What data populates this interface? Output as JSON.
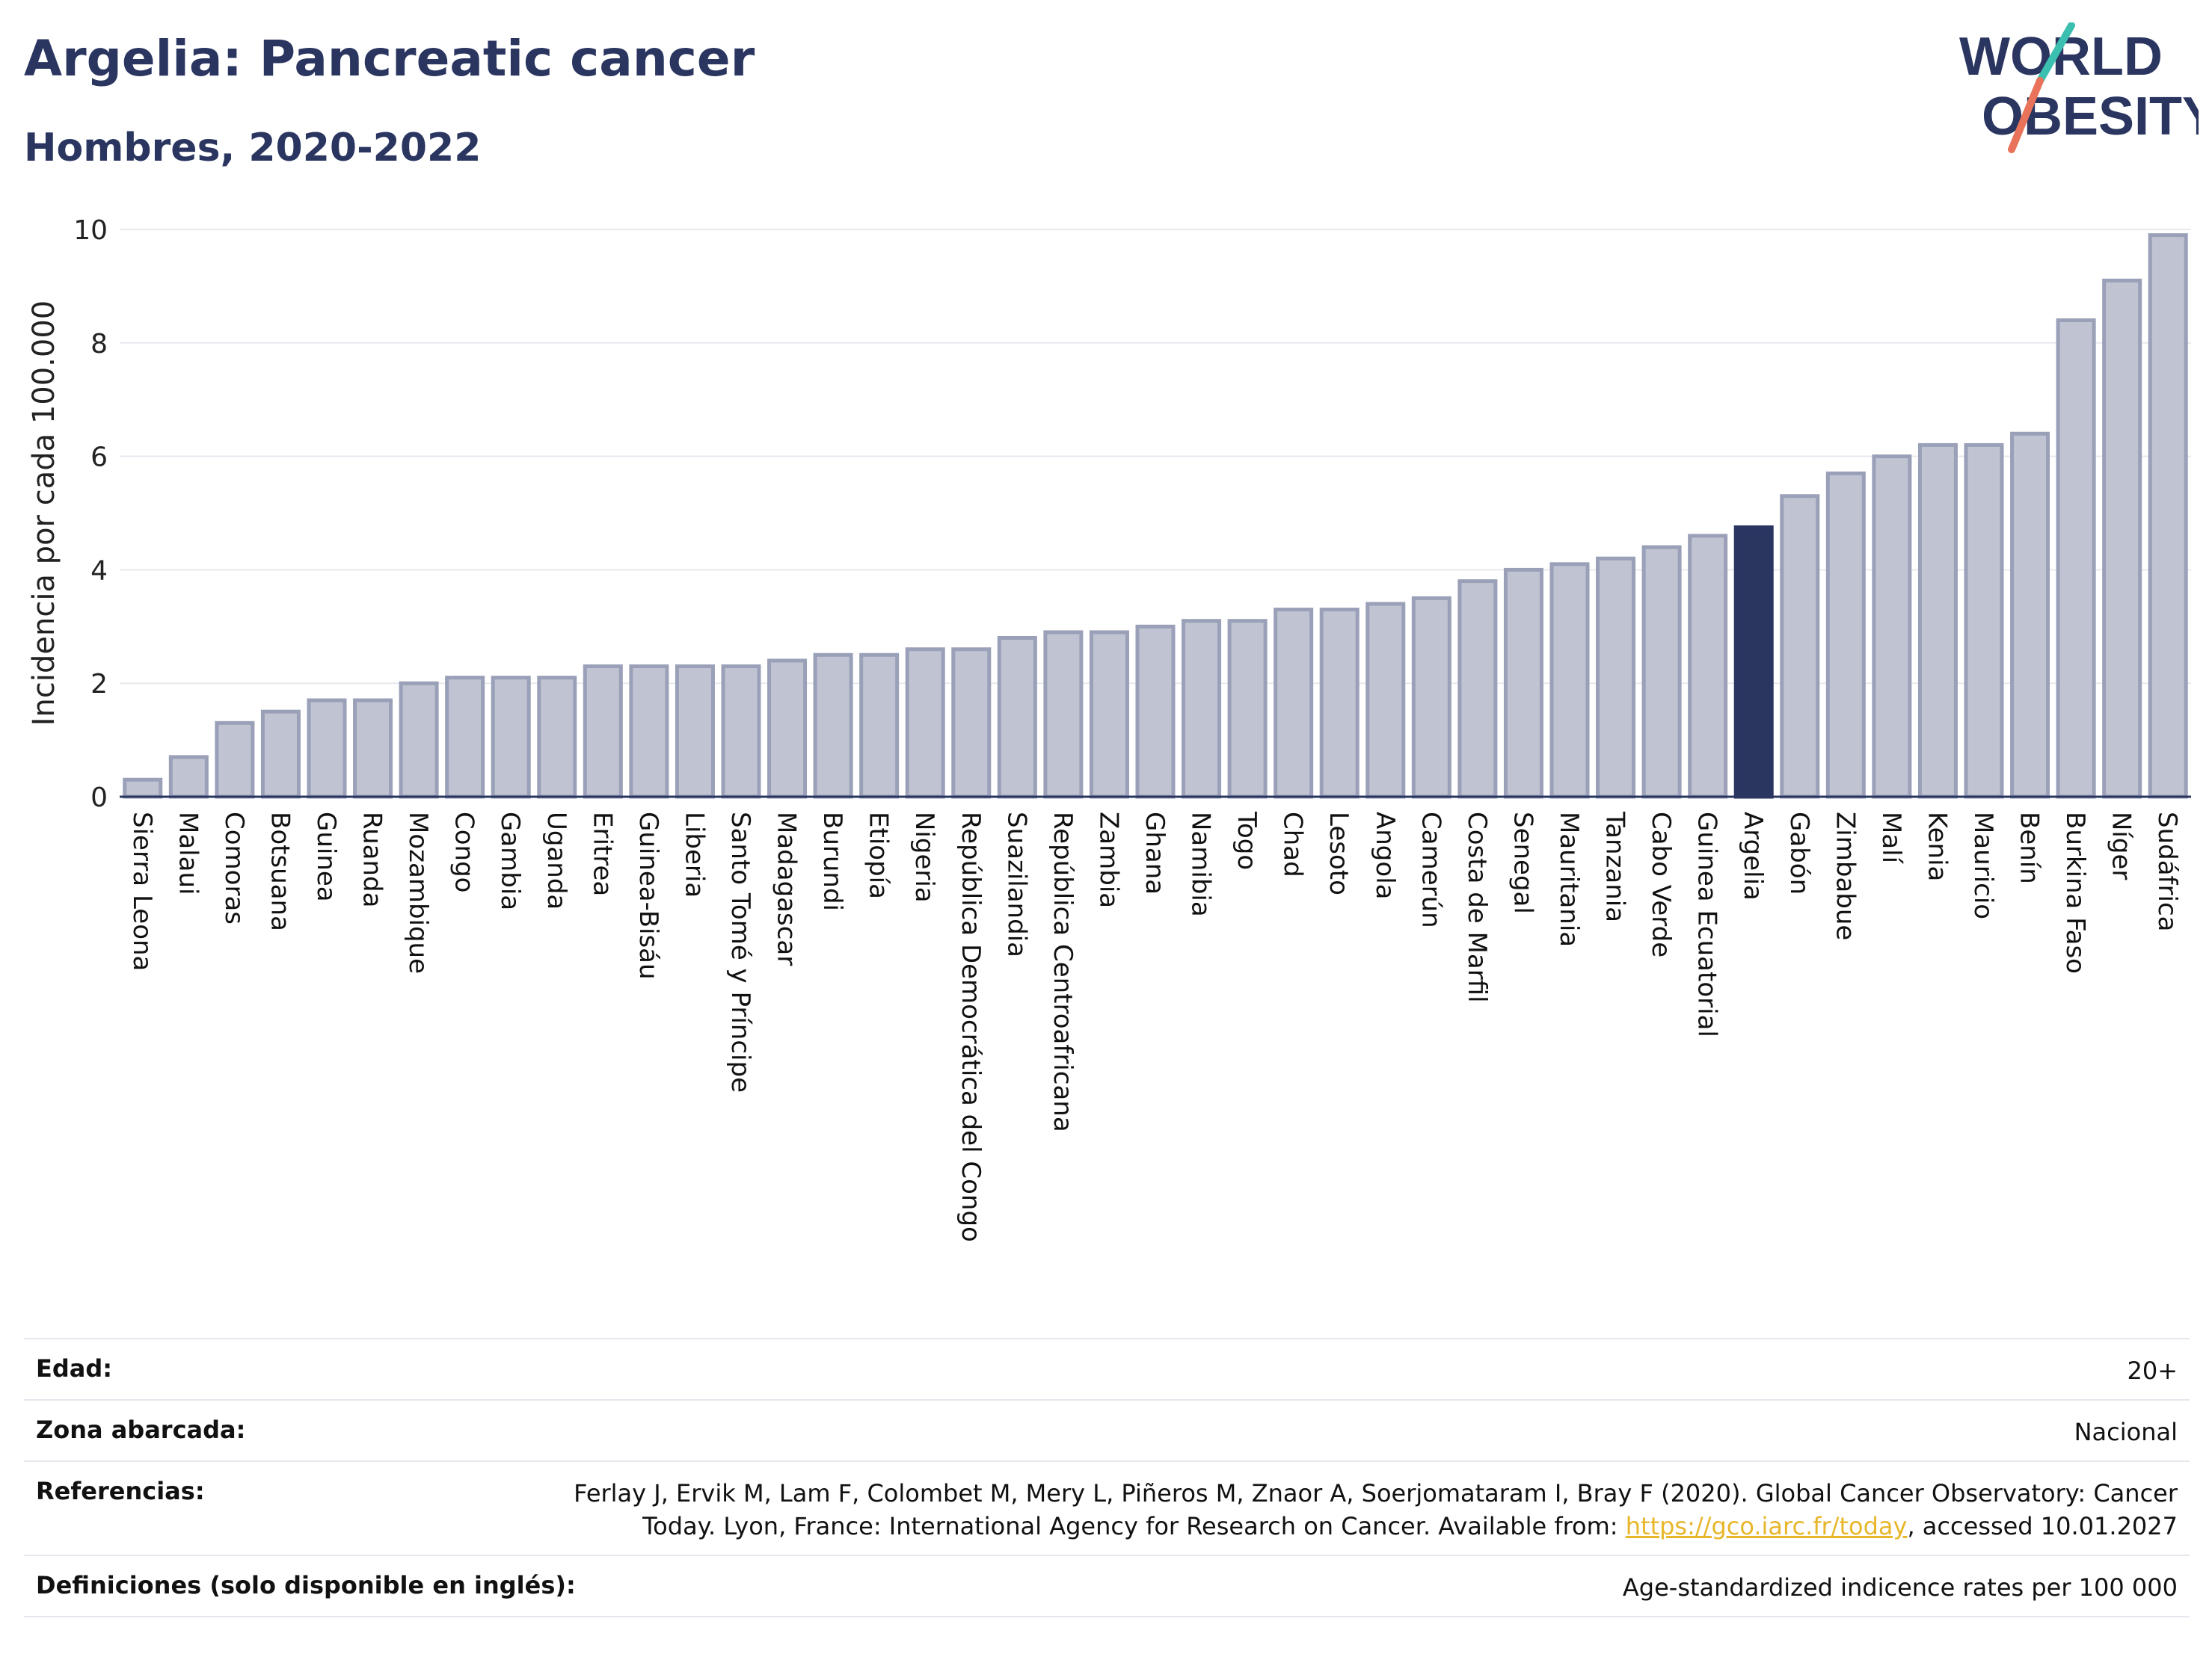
{
  "header": {
    "title": "Argelia: Pancreatic cancer",
    "subtitle": "Hombres, 2020-2022"
  },
  "logo": {
    "line1": "WORLD",
    "line2": "OBESITY",
    "icon": "world-obesity-logo"
  },
  "colors": {
    "bar": "#bfc3d2",
    "bar_border": "#9aa0b8",
    "highlight": "#2a3560",
    "grid": "#e8e9ef",
    "text": "#2a3560",
    "link": "#e8b62a"
  },
  "chart_data": {
    "type": "bar",
    "ylabel": "Incidencia por cada 100.000",
    "ylim": [
      0,
      10
    ],
    "yticks": [
      0,
      2,
      4,
      6,
      8,
      10
    ],
    "highlight": "Argelia",
    "categories": [
      "Sierra Leona",
      "Malaui",
      "Comoras",
      "Botsuana",
      "Guinea",
      "Ruanda",
      "Mozambique",
      "Congo",
      "Gambia",
      "Uganda",
      "Eritrea",
      "Guinea-Bisáu",
      "Liberia",
      "Santo Tomé y Príncipe",
      "Madagascar",
      "Burundi",
      "Etiopía",
      "Nigeria",
      "República Democrática del Congo",
      "Suazilandia",
      "República Centroafricana",
      "Zambia",
      "Ghana",
      "Namibia",
      "Togo",
      "Chad",
      "Lesoto",
      "Angola",
      "Camerún",
      "Costa de Marfil",
      "Senegal",
      "Mauritania",
      "Tanzania",
      "Cabo Verde",
      "Guinea Ecuatorial",
      "Argelia",
      "Gabón",
      "Zimbabue",
      "Malí",
      "Kenia",
      "Mauricio",
      "Benín",
      "Burkina Faso",
      "Níger",
      "Sudáfrica"
    ],
    "values": [
      0.3,
      0.7,
      1.3,
      1.5,
      1.7,
      1.7,
      2.0,
      2.1,
      2.1,
      2.1,
      2.3,
      2.3,
      2.3,
      2.3,
      2.4,
      2.5,
      2.5,
      2.6,
      2.6,
      2.8,
      2.9,
      2.9,
      3.0,
      3.1,
      3.1,
      3.3,
      3.3,
      3.4,
      3.5,
      3.8,
      4.0,
      4.1,
      4.2,
      4.4,
      4.6,
      4.75,
      5.3,
      5.7,
      6.0,
      6.2,
      6.2,
      6.4,
      8.4,
      9.1,
      9.9
    ]
  },
  "meta": {
    "rows": [
      {
        "key": "Edad:",
        "value": "20+"
      },
      {
        "key": "Zona abarcada:",
        "value": "Nacional"
      },
      {
        "key": "Referencias:",
        "value_line1": "Ferlay J, Ervik M, Lam F, Colombet M, Mery L, Piñeros M, Znaor A, Soerjomataram I, Bray F (2020). Global Cancer Observatory: Cancer",
        "value_line2_pre": "Today. Lyon, France: International Agency for Research on Cancer. Available from: ",
        "link": "https://gco.iarc.fr/today",
        "value_line2_post": ", accessed 10.01.2027"
      },
      {
        "key": "Definiciones (solo disponible en inglés):",
        "value": "Age-standardized indicence rates per 100 000"
      }
    ]
  }
}
